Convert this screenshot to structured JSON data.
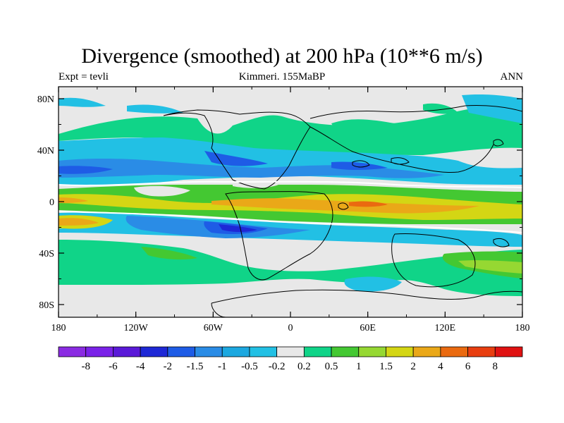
{
  "title": "Divergence (smoothed) at 200 hPa (10**6 m/s)",
  "subtitle_left": "Expt = tevli",
  "subtitle_center": "Kimmeri. 155MaBP",
  "subtitle_right": "ANN",
  "y_ticks": [
    "80N",
    "40N",
    "0",
    "40S",
    "80S"
  ],
  "x_ticks": [
    "180",
    "120W",
    "60W",
    "0",
    "60E",
    "120E",
    "180"
  ],
  "colorbar": {
    "labels": [
      "-8",
      "-6",
      "-4",
      "-2",
      "-1.5",
      "-1",
      "-0.5",
      "-0.2",
      "0.2",
      "0.5",
      "1",
      "1.5",
      "2",
      "4",
      "6",
      "8"
    ],
    "colors": [
      "#8a2be2",
      "#7a22e8",
      "#5a19d8",
      "#1e28d6",
      "#1e5ce6",
      "#2a8ce6",
      "#1ca8e0",
      "#22c0e4",
      "#e8e8e8",
      "#10d488",
      "#44c832",
      "#96d832",
      "#d4d614",
      "#eaa818",
      "#ea6a10",
      "#e83e10",
      "#e01212"
    ]
  },
  "colors": {
    "land_outline": "#000000",
    "background": "#e8e8e8"
  }
}
